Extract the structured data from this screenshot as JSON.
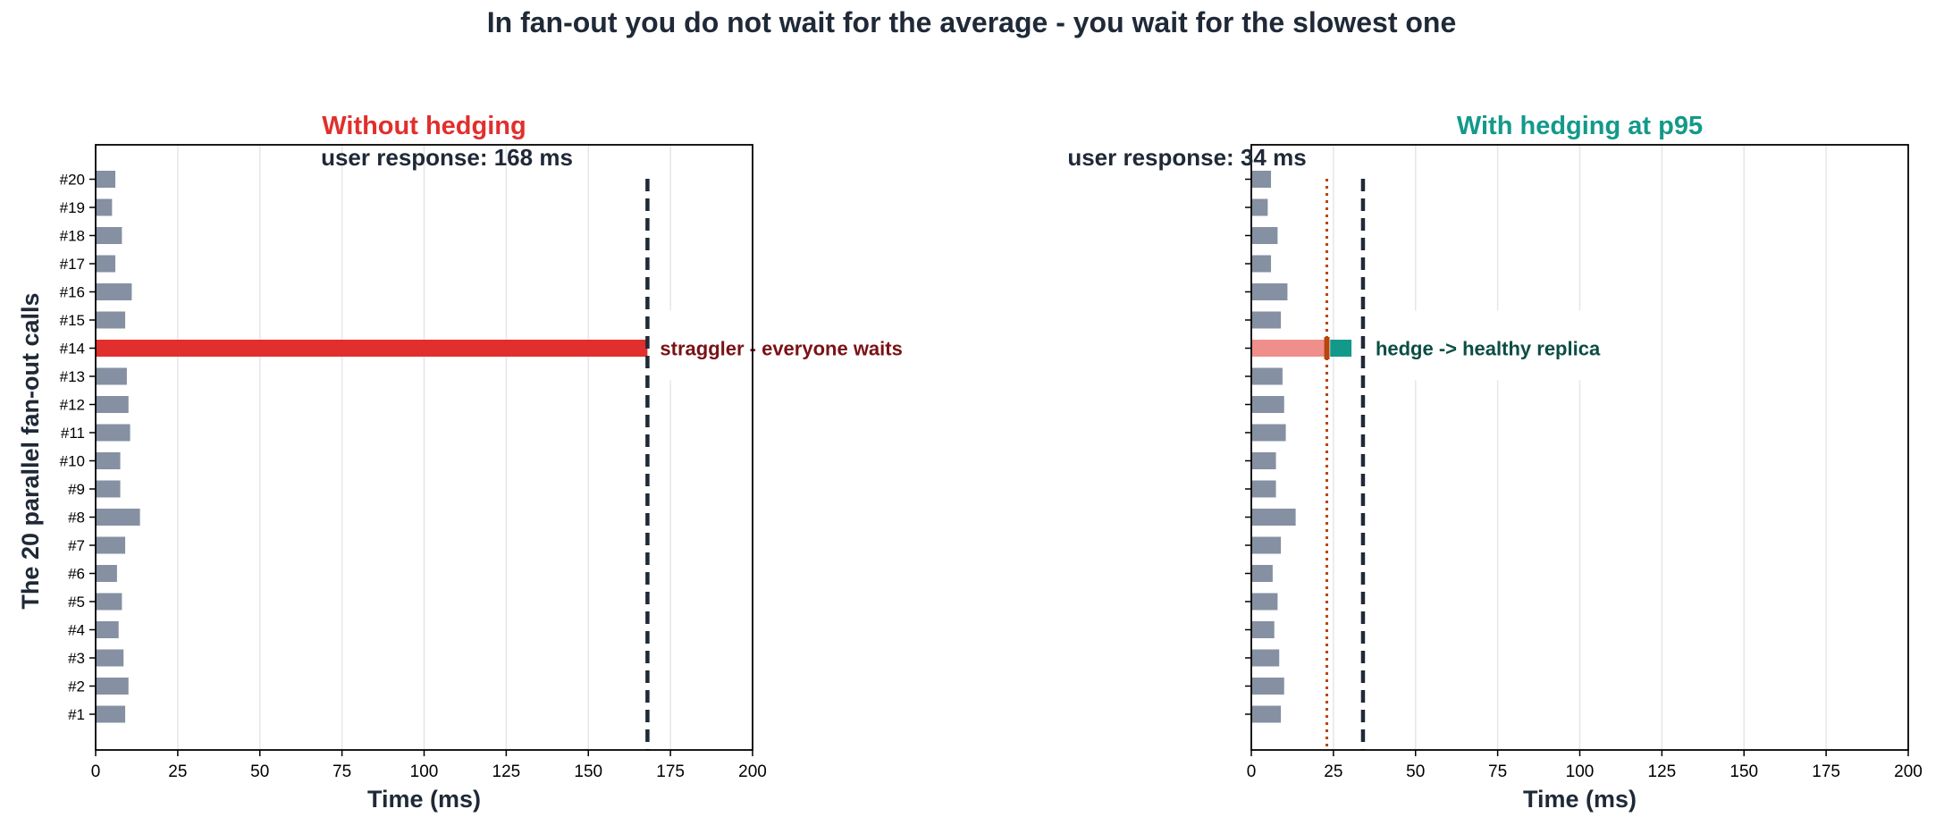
{
  "figure_title": "In fan-out you do not wait for the average - you wait for the slowest one",
  "colors": {
    "text_dark": "#1f2937",
    "bar_gray": "#8590a2",
    "red": "#e12f2d",
    "red_light": "#f08e8b",
    "teal": "#13998a",
    "hedge_marker": "#b6460e",
    "annotation_red": "#7a1115",
    "annotation_teal": "#0b4d44",
    "grid": "#e6e6e6"
  },
  "chart_data": [
    {
      "type": "bar",
      "orientation": "horizontal",
      "title": "Without hedging",
      "title_color": "#e12f2d",
      "subtitle": "user response: 168 ms",
      "xlabel": "Time (ms)",
      "ylabel": "The 20 parallel fan-out calls",
      "xlim": [
        0,
        200
      ],
      "xticks": [
        0,
        25,
        50,
        75,
        100,
        125,
        150,
        175,
        200
      ],
      "grid": "vertical",
      "categories": [
        "#1",
        "#2",
        "#3",
        "#4",
        "#5",
        "#6",
        "#7",
        "#8",
        "#9",
        "#10",
        "#11",
        "#12",
        "#13",
        "#14",
        "#15",
        "#16",
        "#17",
        "#18",
        "#19",
        "#20"
      ],
      "values": [
        9,
        10,
        8.5,
        7,
        8,
        6.5,
        9,
        13.5,
        7.5,
        7.5,
        10.5,
        10,
        9.5,
        168,
        9,
        11,
        6,
        8,
        5,
        6
      ],
      "highlight": {
        "category": "#14",
        "color": "#e12f2d"
      },
      "reference_line": {
        "x": 168,
        "style": "dashed"
      },
      "annotation": {
        "text": "straggler - everyone waits",
        "x": 168,
        "category": "#14"
      }
    },
    {
      "type": "bar",
      "orientation": "horizontal",
      "title": "With hedging at p95",
      "title_color": "#13998a",
      "subtitle": "user response: 34 ms",
      "xlabel": "Time (ms)",
      "ylabel": "",
      "xlim": [
        0,
        200
      ],
      "xticks": [
        0,
        25,
        50,
        75,
        100,
        125,
        150,
        175,
        200
      ],
      "grid": "vertical",
      "categories": [
        "#1",
        "#2",
        "#3",
        "#4",
        "#5",
        "#6",
        "#7",
        "#8",
        "#9",
        "#10",
        "#11",
        "#12",
        "#13",
        "#14",
        "#15",
        "#16",
        "#17",
        "#18",
        "#19",
        "#20"
      ],
      "values": [
        9,
        10,
        8.5,
        7,
        8,
        6.5,
        9,
        13.5,
        7.5,
        7.5,
        10.5,
        10,
        9.5,
        23,
        9,
        11,
        6,
        8,
        5,
        6
      ],
      "highlight": {
        "category": "#14",
        "color": "#f08e8b"
      },
      "hedge": {
        "category": "#14",
        "start": 24,
        "end": 30.5,
        "color": "#13998a"
      },
      "hedge_threshold_line": {
        "x": 23,
        "style": "dotted"
      },
      "reference_line": {
        "x": 34,
        "style": "dashed"
      },
      "annotation": {
        "text": "hedge -> healthy replica",
        "x": 34,
        "category": "#14"
      }
    }
  ]
}
